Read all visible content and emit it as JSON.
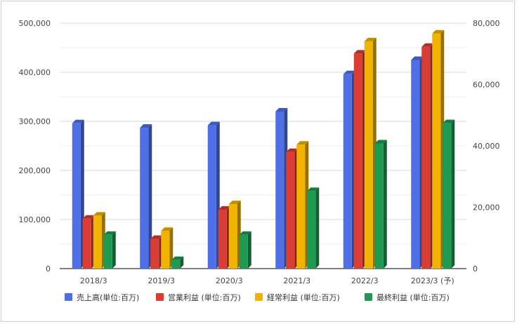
{
  "chart_data": {
    "type": "bar",
    "style": "3d-clustered-column",
    "categories": [
      "2018/3",
      "2019/3",
      "2020/3",
      "2021/3",
      "2022/3",
      "2023/3 (予)"
    ],
    "series": [
      {
        "name": "売上高(単位:百万)",
        "axis": "left",
        "color": "#4f6fe8",
        "values": [
          296000,
          287000,
          292000,
          320000,
          396000,
          425000
        ]
      },
      {
        "name": "営業利益 (単位:百万)",
        "axis": "right",
        "color": "#d93d33",
        "values": [
          16300,
          9700,
          19200,
          38000,
          70100,
          72300
        ]
      },
      {
        "name": "経常利益 (単位:百万)",
        "axis": "right",
        "color": "#f0b400",
        "values": [
          17300,
          12300,
          21000,
          40400,
          74100,
          76600
        ]
      },
      {
        "name": "最終利益 (単位:百万)",
        "axis": "right",
        "color": "#1f9a52",
        "values": [
          11000,
          2800,
          11000,
          25300,
          40800,
          47400
        ]
      }
    ],
    "y_left": {
      "min": 0,
      "max": 500000,
      "ticks": [
        "0",
        "100,000",
        "200,000",
        "300,000",
        "400,000",
        "500,000"
      ]
    },
    "y_right": {
      "min": 0,
      "max": 80000,
      "ticks": [
        "0",
        "20,000",
        "40,000",
        "60,000",
        "80,000"
      ]
    },
    "grid": true,
    "legend_position": "bottom"
  }
}
